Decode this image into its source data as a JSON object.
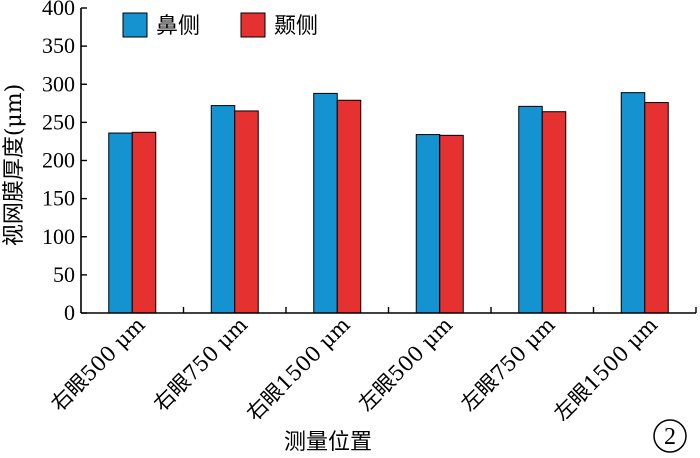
{
  "chart_data": {
    "type": "bar",
    "categories": [
      "右眼500 μm",
      "右眼750 μm",
      "右眼1500  μm",
      "左眼500 μm",
      "左眼750 μm",
      "左眼1500 μm"
    ],
    "series": [
      {
        "name": "鼻侧",
        "color": "#1493d0",
        "values": [
          236,
          272,
          288,
          234,
          271,
          289
        ]
      },
      {
        "name": "颞侧",
        "color": "#e63131",
        "values": [
          237,
          265,
          279,
          233,
          264,
          276
        ]
      }
    ],
    "ylim": [
      0,
      400
    ],
    "yticks": [
      0,
      50,
      100,
      150,
      200,
      250,
      300,
      350,
      400
    ],
    "xlabel": "测量位置",
    "ylabel": "视网膜厚度(μm)",
    "legend_position": "top-left",
    "grid": false,
    "panel_label": "2"
  }
}
